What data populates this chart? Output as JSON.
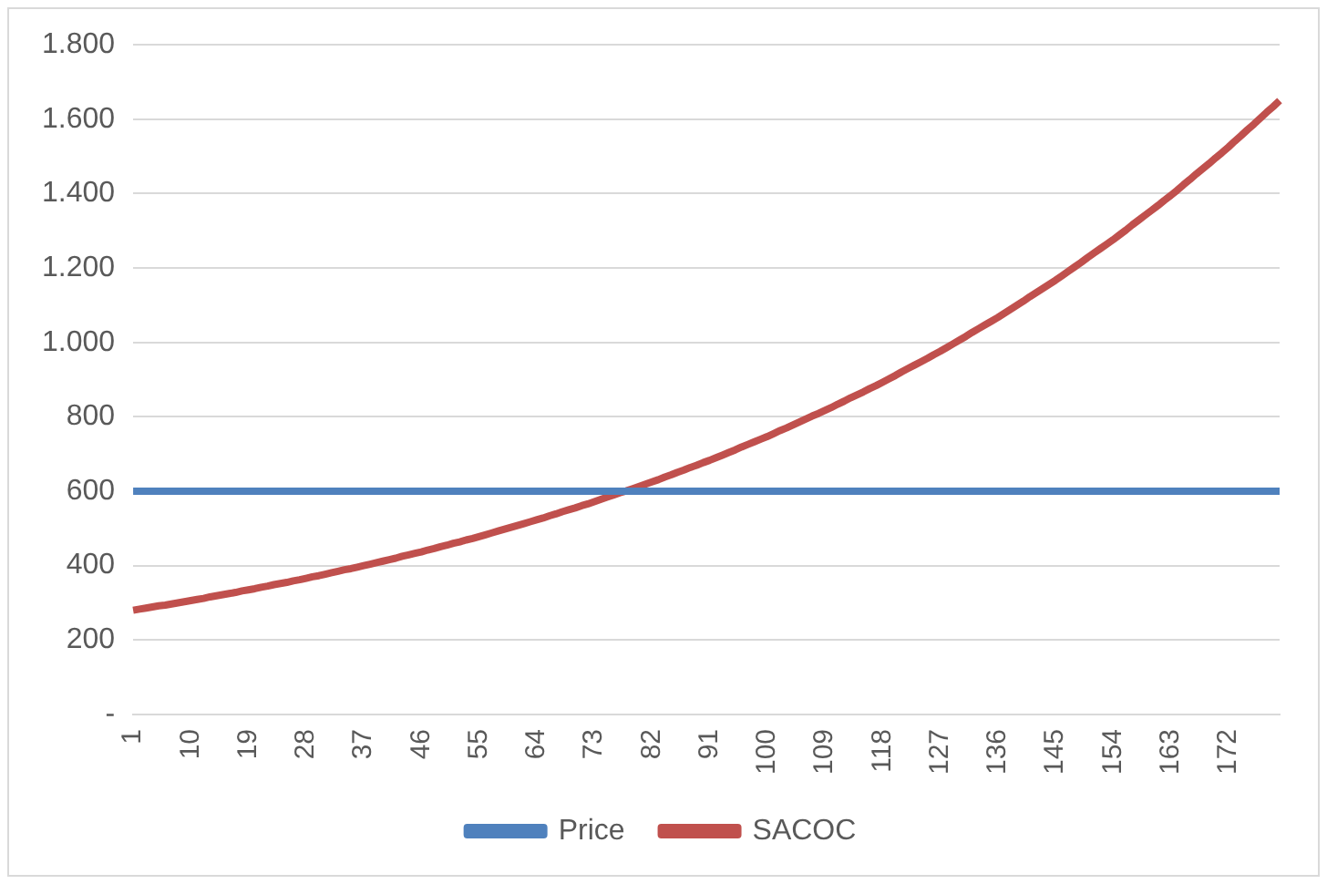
{
  "chart_data": {
    "type": "line",
    "categories": [
      "1",
      null,
      null,
      null,
      null,
      null,
      null,
      null,
      null,
      "10",
      null,
      null,
      null,
      null,
      null,
      null,
      null,
      null,
      "19",
      null,
      null,
      null,
      null,
      null,
      null,
      null,
      null,
      "28",
      null,
      null,
      null,
      null,
      null,
      null,
      null,
      null,
      "37",
      null,
      null,
      null,
      null,
      null,
      null,
      null,
      null,
      "46",
      null,
      null,
      null,
      null,
      null,
      null,
      null,
      null,
      "55",
      null,
      null,
      null,
      null,
      null,
      null,
      null,
      null,
      "64",
      null,
      null,
      null,
      null,
      null,
      null,
      null,
      null,
      "73",
      null,
      null,
      null,
      null,
      null,
      null,
      null,
      null,
      "82",
      null,
      null,
      null,
      null,
      null,
      null,
      null,
      null,
      "91",
      null,
      null,
      null,
      null,
      null,
      null,
      null,
      null,
      "100",
      null,
      null,
      null,
      null,
      null,
      null,
      null,
      null,
      "109",
      null,
      null,
      null,
      null,
      null,
      null,
      null,
      null,
      "118",
      null,
      null,
      null,
      null,
      null,
      null,
      null,
      null,
      "127",
      null,
      null,
      null,
      null,
      null,
      null,
      null,
      null,
      "136",
      null,
      null,
      null,
      null,
      null,
      null,
      null,
      null,
      "145",
      null,
      null,
      null,
      null,
      null,
      null,
      null,
      null,
      "154",
      null,
      null,
      null,
      null,
      null,
      null,
      null,
      null,
      "163",
      null,
      null,
      null,
      null,
      null,
      null,
      null,
      null,
      "172",
      null,
      null,
      null,
      null,
      null,
      null,
      null,
      null
    ],
    "series": [
      {
        "name": "Price",
        "color": "#4f81bd",
        "values": [
          600,
          600,
          600,
          600,
          600,
          600,
          600,
          600,
          600,
          600,
          600,
          600,
          600,
          600,
          600,
          600,
          600,
          600,
          600,
          600,
          600,
          600,
          600,
          600,
          600,
          600,
          600,
          600,
          600,
          600,
          600,
          600,
          600,
          600,
          600,
          600,
          600,
          600,
          600,
          600,
          600,
          600,
          600,
          600,
          600,
          600,
          600,
          600,
          600,
          600,
          600,
          600,
          600,
          600,
          600,
          600,
          600,
          600,
          600,
          600,
          600,
          600,
          600,
          600,
          600,
          600,
          600,
          600,
          600,
          600,
          600,
          600,
          600,
          600,
          600,
          600,
          600,
          600,
          600,
          600,
          600,
          600,
          600,
          600,
          600,
          600,
          600,
          600,
          600,
          600,
          600,
          600,
          600,
          600,
          600,
          600,
          600,
          600,
          600,
          600,
          600,
          600,
          600,
          600,
          600,
          600,
          600,
          600,
          600,
          600,
          600,
          600,
          600,
          600,
          600,
          600,
          600,
          600,
          600,
          600,
          600,
          600,
          600,
          600,
          600,
          600,
          600,
          600,
          600,
          600,
          600,
          600,
          600,
          600,
          600,
          600,
          600,
          600,
          600,
          600,
          600,
          600,
          600,
          600,
          600,
          600,
          600,
          600,
          600,
          600,
          600,
          600,
          600,
          600,
          600,
          600,
          600,
          600,
          600,
          600,
          600,
          600,
          600,
          600,
          600,
          600,
          600,
          600,
          600,
          600,
          600,
          600,
          600,
          600,
          600,
          600,
          600,
          600,
          600,
          600
        ]
      },
      {
        "name": "SACOC",
        "color": "#c0504d",
        "values": [
          280,
          283,
          286,
          289,
          292,
          294,
          297,
          300,
          303,
          306,
          309,
          312,
          316,
          319,
          322,
          325,
          328,
          332,
          335,
          338,
          342,
          345,
          349,
          352,
          355,
          359,
          362,
          366,
          370,
          373,
          377,
          381,
          385,
          389,
          392,
          396,
          400,
          404,
          408,
          412,
          416,
          420,
          425,
          429,
          433,
          437,
          442,
          446,
          451,
          455,
          460,
          464,
          469,
          473,
          478,
          483,
          488,
          493,
          498,
          503,
          508,
          513,
          518,
          523,
          528,
          534,
          539,
          545,
          550,
          555,
          561,
          566,
          572,
          578,
          584,
          590,
          596,
          601,
          607,
          613,
          619,
          625,
          631,
          638,
          644,
          651,
          657,
          664,
          670,
          677,
          683,
          690,
          697,
          704,
          711,
          719,
          726,
          733,
          740,
          747,
          755,
          763,
          770,
          778,
          786,
          794,
          802,
          809,
          817,
          825,
          834,
          842,
          851,
          859,
          867,
          876,
          884,
          893,
          902,
          911,
          921,
          930,
          939,
          948,
          957,
          967,
          976,
          986,
          996,
          1006,
          1016,
          1027,
          1037,
          1047,
          1057,
          1067,
          1078,
          1089,
          1100,
          1111,
          1123,
          1134,
          1145,
          1156,
          1167,
          1179,
          1191,
          1203,
          1215,
          1228,
          1240,
          1252,
          1264,
          1276,
          1289,
          1302,
          1316,
          1329,
          1342,
          1355,
          1368,
          1382,
          1395,
          1409,
          1424,
          1438,
          1453,
          1467,
          1481,
          1496,
          1510,
          1525,
          1541,
          1556,
          1572,
          1587,
          1603,
          1619,
          1634,
          1650
        ]
      }
    ],
    "ylim": [
      0,
      1800
    ],
    "yticks": [
      {
        "value": 0,
        "label": "-"
      },
      200,
      400,
      600,
      800,
      {
        "value": 1000,
        "label": "1.000"
      },
      {
        "value": 1200,
        "label": "1.200"
      },
      {
        "value": 1400,
        "label": "1.400"
      },
      {
        "value": 1600,
        "label": "1.600"
      },
      {
        "value": 1800,
        "label": "1.800"
      }
    ],
    "grid": "y",
    "legend": "bottom",
    "marker": "none",
    "line_style": "solid"
  }
}
